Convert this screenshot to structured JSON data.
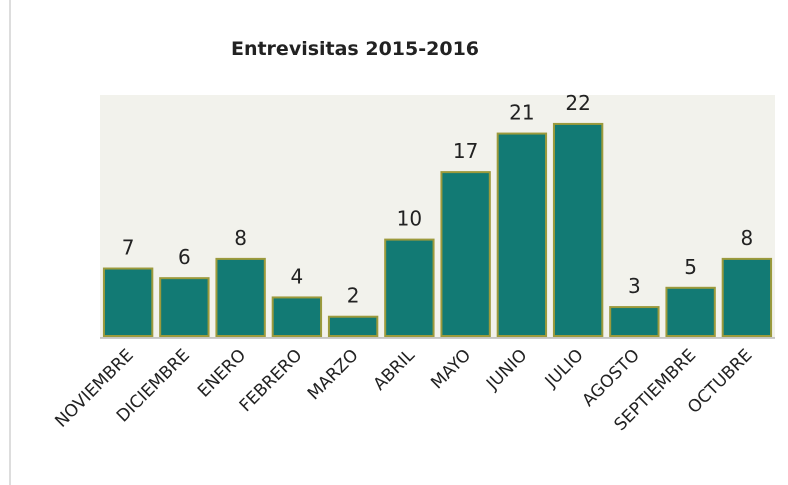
{
  "chart_data": {
    "type": "bar",
    "title": "Entrevisitas 2015-2016",
    "categories": [
      "NOVIEMBRE",
      "DICIEMBRE",
      "ENERO",
      "FEBRERO",
      "MARZO",
      "ABRIL",
      "MAYO",
      "JUNIO",
      "JULIO",
      "AGOSTO",
      "SEPTIEMBRE",
      "OCTUBRE"
    ],
    "values": [
      7,
      6,
      8,
      4,
      2,
      10,
      17,
      21,
      22,
      3,
      5,
      8
    ],
    "color": "#127a74",
    "ylim": [
      0,
      25
    ],
    "grid": false
  }
}
